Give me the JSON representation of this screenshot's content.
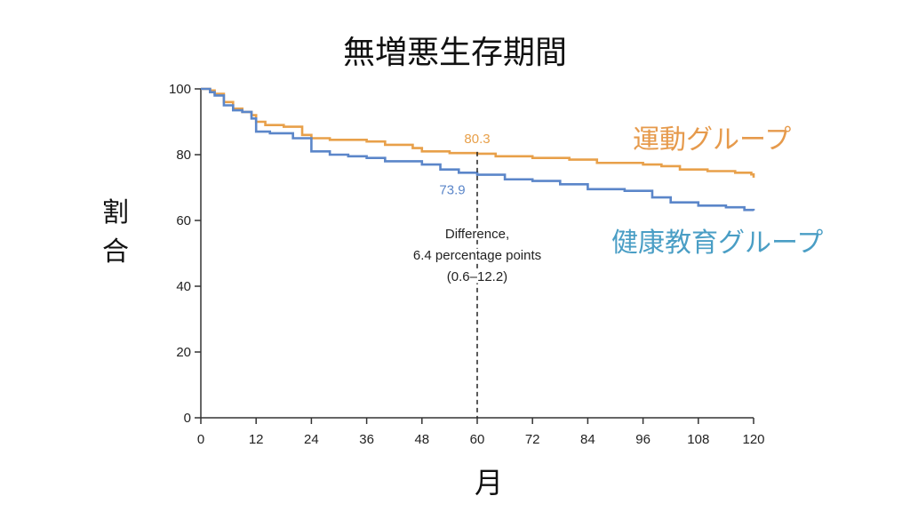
{
  "title": "無増悪生存期間",
  "ylabel": "割\n合",
  "xlabel": "月",
  "colors": {
    "exercise": "#e8a04a",
    "education": "#5b86c9",
    "exercise_label": "#e69a4c",
    "education_label": "#4a9ec5",
    "axis": "#333333"
  },
  "chart_data": {
    "type": "line",
    "title": "無増悪生存期間",
    "xlabel": "月",
    "ylabel": "割合",
    "xlim": [
      0,
      120
    ],
    "ylim": [
      0,
      100
    ],
    "xticks": [
      0,
      12,
      24,
      36,
      48,
      60,
      72,
      84,
      96,
      108,
      120
    ],
    "yticks": [
      0,
      20,
      40,
      60,
      80,
      100
    ],
    "grid": false,
    "legend": "inline-right",
    "series": [
      {
        "name": "運動グループ",
        "points": [
          [
            0,
            100
          ],
          [
            2,
            99.5
          ],
          [
            3,
            98.5
          ],
          [
            5,
            96
          ],
          [
            7,
            94
          ],
          [
            9,
            93
          ],
          [
            11,
            92
          ],
          [
            12,
            90
          ],
          [
            14,
            89
          ],
          [
            18,
            88.5
          ],
          [
            22,
            86
          ],
          [
            24,
            85
          ],
          [
            28,
            84.5
          ],
          [
            36,
            84
          ],
          [
            40,
            83
          ],
          [
            46,
            82
          ],
          [
            48,
            81
          ],
          [
            54,
            80.5
          ],
          [
            60,
            80.3
          ],
          [
            64,
            79.5
          ],
          [
            72,
            79
          ],
          [
            80,
            78.5
          ],
          [
            86,
            77.5
          ],
          [
            96,
            77
          ],
          [
            100,
            76.5
          ],
          [
            104,
            75.5
          ],
          [
            110,
            75
          ],
          [
            116,
            74.5
          ],
          [
            119.5,
            74
          ],
          [
            120,
            73
          ]
        ]
      },
      {
        "name": "健康教育グループ",
        "points": [
          [
            0,
            100
          ],
          [
            2,
            99
          ],
          [
            3,
            98
          ],
          [
            5,
            95
          ],
          [
            7,
            93.5
          ],
          [
            9,
            93
          ],
          [
            11,
            91
          ],
          [
            12,
            87
          ],
          [
            15,
            86.5
          ],
          [
            20,
            85
          ],
          [
            24,
            81
          ],
          [
            28,
            80
          ],
          [
            32,
            79.5
          ],
          [
            36,
            79
          ],
          [
            40,
            78
          ],
          [
            48,
            77
          ],
          [
            52,
            75.5
          ],
          [
            56,
            74.5
          ],
          [
            60,
            73.9
          ],
          [
            66,
            72.5
          ],
          [
            72,
            72
          ],
          [
            78,
            71
          ],
          [
            84,
            69.5
          ],
          [
            92,
            69
          ],
          [
            98,
            67
          ],
          [
            102,
            65.5
          ],
          [
            108,
            64.5
          ],
          [
            114,
            64
          ],
          [
            118,
            63.2
          ],
          [
            120,
            63
          ]
        ]
      }
    ],
    "annotations": {
      "exercise_value": "80.3",
      "education_value": "73.9",
      "marker_x": 60,
      "difference_lines": [
        "Difference,",
        "6.4 percentage points",
        "(0.6–12.2)"
      ]
    }
  },
  "legend_labels": {
    "exercise": "運動グループ",
    "education": "健康教育グループ"
  }
}
